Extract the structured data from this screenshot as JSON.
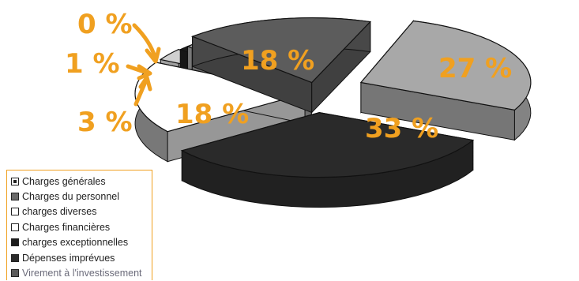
{
  "chart_data": {
    "type": "pie",
    "title": "",
    "style": "3d-exploded",
    "label_color": "#f0a020",
    "categories": [
      "Charges générales",
      "Charges du personnel",
      "charges diverses",
      "Charges financières",
      "charges exceptionnelles",
      "Dépenses imprévues",
      "Virement à l'investissement"
    ],
    "values": [
      27,
      33,
      18,
      3,
      1,
      0,
      18
    ],
    "value_labels": [
      "27 %",
      "33 %",
      "18 %",
      "3 %",
      "1 %",
      "0 %",
      "18 %"
    ],
    "colors": [
      "#a8a8a8",
      "#2a2a2a",
      "#ffffff",
      "#cfcfcf",
      "#1c1c1c",
      "#9a9a9a",
      "#5c5c5c"
    ],
    "legend_position": "bottom-left"
  }
}
